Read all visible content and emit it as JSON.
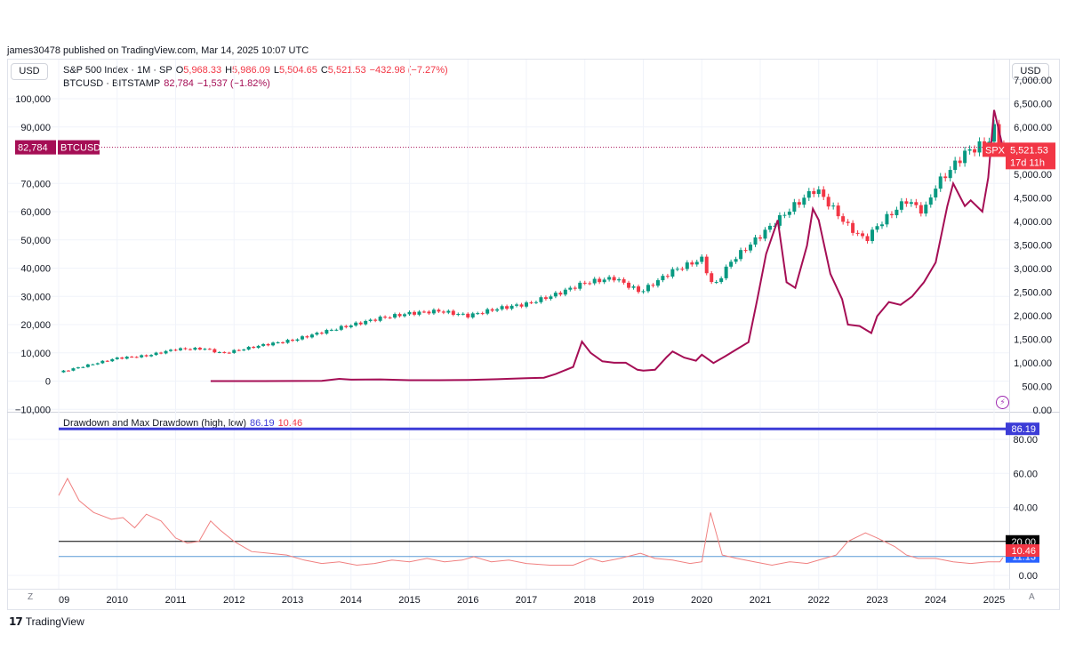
{
  "header": {
    "published": "james30478 published on TradingView.com, Mar 14, 2025 10:07 UTC",
    "left_currency": "USD",
    "right_currency": "USD"
  },
  "legend": {
    "spx_title": "S&P 500 Index · 1M · SP",
    "spx_open_label": "O",
    "spx_open": "5,968.33",
    "spx_high_label": "H",
    "spx_high": "5,986.09",
    "spx_low_label": "L",
    "spx_low": "5,504.65",
    "spx_close_label": "C",
    "spx_close": "5,521.53",
    "spx_change": "−432.98 (−7.27%)",
    "btc_title": "BTCUSD · BITSTAMP",
    "btc_value": "82,784",
    "btc_change": "−1,537 (−1.82%)",
    "dd_title": "Drawdown and Max Drawdown (high, low)",
    "dd_high": "86.19",
    "dd_low": "10.46"
  },
  "tags": {
    "btc_price": "82,784",
    "btc_symbol": "BTCUSD",
    "spx_symbol": "SPX",
    "spx_price": "5,521.53",
    "spx_countdown": "17d 11h",
    "max_dd": "86.19",
    "level_20": "20.00",
    "level_11": "11.13",
    "dd_last": "10.46"
  },
  "footer": {
    "brand": "TradingView",
    "z": "Z",
    "a": "A"
  },
  "colors": {
    "btc": "#a50e55",
    "up": "#089981",
    "down": "#f23645",
    "dd_line": "#f08080",
    "max_dd": "#3c3cd7",
    "level_20": "#000000",
    "level_11": "#5b9bd5"
  },
  "chart_data": [
    {
      "type": "line",
      "series": [
        {
          "name": "BTCUSD · BITSTAMP",
          "x": [
            2011.6,
            2012.5,
            2013.5,
            2013.8,
            2014.0,
            2014.5,
            2015.0,
            2015.5,
            2016.0,
            2016.5,
            2017.0,
            2017.3,
            2017.5,
            2017.8,
            2017.95,
            2018.1,
            2018.3,
            2018.5,
            2018.7,
            2018.9,
            2019.0,
            2019.2,
            2019.4,
            2019.5,
            2019.7,
            2019.9,
            2020.0,
            2020.2,
            2020.4,
            2020.6,
            2020.8,
            2020.95,
            2021.1,
            2021.3,
            2021.45,
            2021.6,
            2021.8,
            2021.9,
            2022.0,
            2022.2,
            2022.4,
            2022.5,
            2022.7,
            2022.9,
            2023.0,
            2023.2,
            2023.4,
            2023.6,
            2023.8,
            2024.0,
            2024.2,
            2024.3,
            2024.5,
            2024.6,
            2024.8,
            2024.9,
            2025.0,
            2025.15
          ],
          "values": [
            5,
            5,
            100,
            800,
            500,
            600,
            300,
            300,
            400,
            650,
            1000,
            1200,
            2500,
            5000,
            14000,
            10000,
            7000,
            6500,
            6500,
            4000,
            3700,
            4000,
            8500,
            10500,
            8300,
            7200,
            9350,
            6400,
            8800,
            11300,
            13800,
            29000,
            45000,
            57000,
            35000,
            33000,
            48000,
            61000,
            57000,
            38000,
            29000,
            20000,
            19500,
            17000,
            23000,
            28000,
            27000,
            30000,
            35000,
            42000,
            62000,
            70000,
            62000,
            64000,
            60000,
            72000,
            96000,
            82784
          ]
        },
        {
          "name": "S&P 500 Index · 1M · SP",
          "x": [
            2009.0,
            2009.5,
            2010.0,
            2010.5,
            2011.0,
            2011.5,
            2011.8,
            2012.5,
            2013.0,
            2013.5,
            2014.0,
            2014.5,
            2015.0,
            2015.5,
            2016.0,
            2016.5,
            2017.0,
            2017.5,
            2018.0,
            2018.5,
            2018.95,
            2019.5,
            2020.0,
            2020.2,
            2020.5,
            2021.0,
            2021.5,
            2021.95,
            2022.5,
            2022.8,
            2023.0,
            2023.5,
            2023.8,
            2024.0,
            2024.5,
            2024.9,
            2025.0,
            2025.15
          ],
          "values": [
            800,
            950,
            1100,
            1150,
            1290,
            1300,
            1200,
            1380,
            1480,
            1650,
            1800,
            1950,
            2050,
            2100,
            2000,
            2150,
            2250,
            2450,
            2700,
            2800,
            2500,
            2950,
            3200,
            2600,
            3150,
            3700,
            4250,
            4700,
            3900,
            3600,
            3900,
            4450,
            4200,
            4750,
            5450,
            5700,
            5960,
            5521.53
          ]
        }
      ],
      "y_left_ticks": [
        "100,000",
        "90,000",
        "70,000",
        "60,000",
        "50,000",
        "40,000",
        "30,000",
        "20,000",
        "10,000",
        "0",
        "−10,000"
      ],
      "y_right_ticks": [
        "7,000.00",
        "6,500.00",
        "6,000.00",
        "5,000.00",
        "4,500.00",
        "4,000.00",
        "3,500.00",
        "3,000.00",
        "2,500.00",
        "2,000.00",
        "1,500.00",
        "1,000.00",
        "500.00",
        "0.00"
      ],
      "x_ticks": [
        "09",
        "2010",
        "2011",
        "2012",
        "2013",
        "2014",
        "2015",
        "2016",
        "2017",
        "2018",
        "2019",
        "2020",
        "2021",
        "2022",
        "2023",
        "2024",
        "2025"
      ]
    },
    {
      "type": "line",
      "series": [
        {
          "name": "Drawdown and Max Drawdown (high, low)",
          "x": [
            2009.0,
            2009.15,
            2009.35,
            2009.6,
            2009.9,
            2010.1,
            2010.3,
            2010.5,
            2010.75,
            2011.0,
            2011.2,
            2011.4,
            2011.6,
            2011.75,
            2012.0,
            2012.3,
            2012.6,
            2012.9,
            2013.2,
            2013.5,
            2013.8,
            2014.1,
            2014.4,
            2014.7,
            2015.0,
            2015.3,
            2015.6,
            2015.9,
            2016.1,
            2016.4,
            2016.7,
            2017.0,
            2017.4,
            2017.8,
            2018.1,
            2018.3,
            2018.6,
            2018.95,
            2019.2,
            2019.5,
            2019.8,
            2020.0,
            2020.15,
            2020.35,
            2020.6,
            2020.9,
            2021.2,
            2021.5,
            2021.8,
            2022.1,
            2022.3,
            2022.5,
            2022.8,
            2023.0,
            2023.3,
            2023.5,
            2023.7,
            2024.0,
            2024.3,
            2024.6,
            2024.9,
            2025.1,
            2025.15
          ],
          "values": [
            47,
            57,
            44,
            37,
            33,
            34,
            28,
            36,
            32,
            22,
            19,
            20,
            32,
            27,
            20,
            14,
            13,
            12,
            9,
            7,
            8,
            6,
            7,
            9,
            8,
            10,
            8,
            9,
            11,
            8,
            9,
            7,
            6,
            6,
            10,
            8,
            10,
            13,
            10,
            9,
            7,
            8,
            37,
            12,
            10,
            8,
            6,
            8,
            7,
            10,
            12,
            20,
            25,
            22,
            17,
            12,
            10,
            10,
            8,
            7,
            8,
            8,
            10.46
          ]
        }
      ],
      "levels": [
        86.19,
        20.0,
        11.13
      ],
      "y_right_ticks": [
        "80.00",
        "60.00",
        "40.00",
        "0.00"
      ]
    }
  ]
}
